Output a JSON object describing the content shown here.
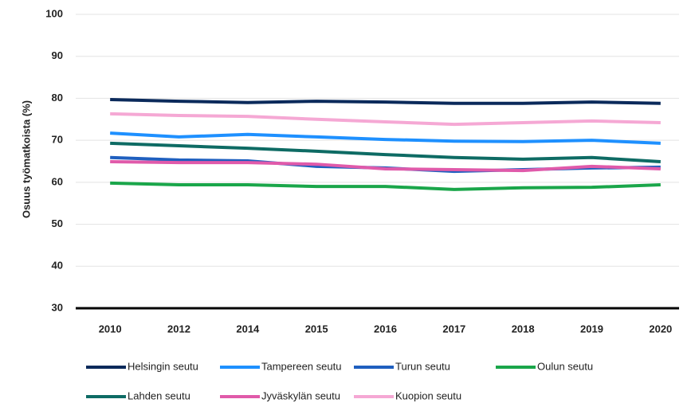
{
  "chart_data": {
    "type": "line",
    "y_label": "Osuus työmatkoista (%)",
    "categories": [
      "2010",
      "2012",
      "2014",
      "2015",
      "2016",
      "2017",
      "2018",
      "2019",
      "2020"
    ],
    "series": [
      {
        "name": "Helsingin seutu",
        "color": "#0b2a5b",
        "values": [
          79.7,
          79.3,
          79.0,
          79.3,
          79.1,
          78.8,
          78.8,
          79.1,
          78.8
        ]
      },
      {
        "name": "Tampereen seutu",
        "color": "#1e90ff",
        "values": [
          71.7,
          70.8,
          71.4,
          70.8,
          70.2,
          69.8,
          69.7,
          70.0,
          69.3
        ]
      },
      {
        "name": "Turun seutu",
        "color": "#1f5fbf",
        "values": [
          65.9,
          65.3,
          65.1,
          63.8,
          63.4,
          62.6,
          63.0,
          63.4,
          63.6
        ]
      },
      {
        "name": "Oulun seutu",
        "color": "#1aa64a",
        "values": [
          59.8,
          59.4,
          59.4,
          59.0,
          59.0,
          58.3,
          58.7,
          58.8,
          59.4
        ]
      },
      {
        "name": "Lahden seutu",
        "color": "#0e6b64",
        "values": [
          69.3,
          68.7,
          68.1,
          67.4,
          66.6,
          65.9,
          65.5,
          65.9,
          64.9
        ]
      },
      {
        "name": "Jyväskylän seutu",
        "color": "#e05aaa",
        "values": [
          64.9,
          64.7,
          64.7,
          64.3,
          63.2,
          63.0,
          62.8,
          63.8,
          63.2
        ]
      },
      {
        "name": "Kuopion seutu",
        "color": "#f5a8d4",
        "values": [
          76.3,
          75.9,
          75.7,
          75.0,
          74.4,
          73.8,
          74.2,
          74.6,
          74.2
        ]
      }
    ],
    "ylim": [
      30,
      100
    ],
    "yticks": [
      30,
      40,
      50,
      60,
      70,
      80,
      90,
      100
    ],
    "grid": true
  }
}
